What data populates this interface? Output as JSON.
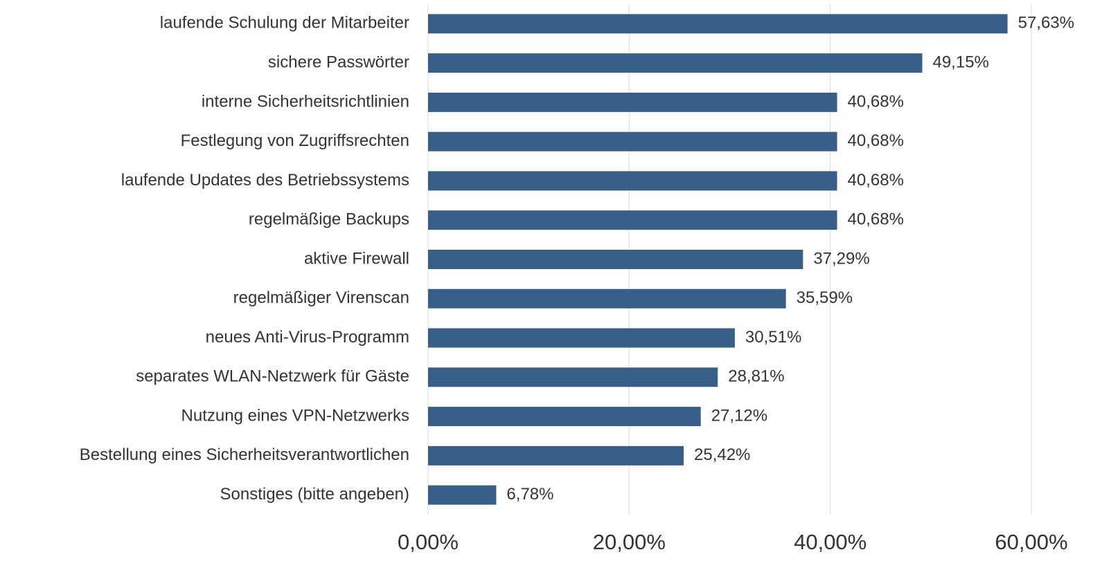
{
  "chart_data": {
    "type": "bar",
    "orientation": "horizontal",
    "categories": [
      "laufende Schulung der Mitarbeiter",
      "sichere Passwörter",
      "interne Sicherheitsrichtlinien",
      "Festlegung von Zugriffsrechten",
      "laufende Updates des Betriebssystems",
      "regelmäßige Backups",
      "aktive Firewall",
      "regelmäßiger Virenscan",
      "neues Anti-Virus-Programm",
      "separates WLAN-Netzwerk für Gäste",
      "Nutzung eines VPN-Netzwerks",
      "Bestellung eines Sicherheitsverantwortlichen",
      "Sonstiges (bitte angeben)"
    ],
    "values": [
      57.63,
      49.15,
      40.68,
      40.68,
      40.68,
      40.68,
      37.29,
      35.59,
      30.51,
      28.81,
      27.12,
      25.42,
      6.78
    ],
    "value_labels": [
      "57,63%",
      "49,15%",
      "40,68%",
      "40,68%",
      "40,68%",
      "40,68%",
      "37,29%",
      "35,59%",
      "30,51%",
      "28,81%",
      "27,12%",
      "25,42%",
      "6,78%"
    ],
    "color": "#375f87",
    "xlim": [
      0,
      60
    ],
    "xticks": [
      {
        "value": 0,
        "label": "0,00%"
      },
      {
        "value": 20,
        "label": "20,00%"
      },
      {
        "value": 40,
        "label": "40,00%"
      },
      {
        "value": 60,
        "label": "60,00%"
      }
    ],
    "grid": true
  }
}
